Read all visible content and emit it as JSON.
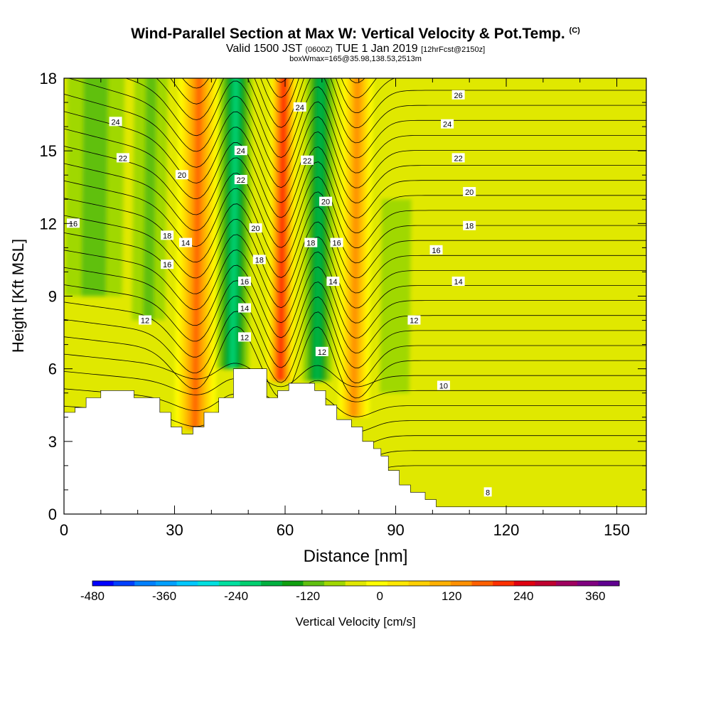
{
  "title": {
    "main": "Wind-Parallel Section at Max W: Vertical Velocity & Pot.Temp.",
    "copyright": "(C)",
    "valid_prefix": "Valid 1500 JST",
    "valid_utc": "(0600Z)",
    "valid_date": "TUE 1 Jan 2019",
    "forecast": "[12hrFcst@2150z]",
    "box_info": "boxWmax=165@35.98,138.53,2513m"
  },
  "chart_data": {
    "type": "heatmap",
    "xlabel": "Distance [nm]",
    "ylabel": "Height [Kft MSL]",
    "xlim": [
      0,
      158
    ],
    "ylim": [
      0,
      18
    ],
    "x_ticks": [
      0,
      30,
      60,
      90,
      120,
      150
    ],
    "y_ticks": [
      0,
      3,
      6,
      9,
      12,
      15,
      18
    ],
    "colorbar": {
      "label": "Vertical Velocity [cm/s]",
      "min": -480,
      "max": 400,
      "step": 40,
      "tick_labels": [
        -480,
        -360,
        -240,
        -120,
        0,
        120,
        240,
        360
      ],
      "colors": [
        "#0000ff",
        "#0040ff",
        "#0080ff",
        "#00a0ff",
        "#00c8ff",
        "#00e0e0",
        "#00e0a0",
        "#00d070",
        "#00b040",
        "#10a010",
        "#60c010",
        "#a0d800",
        "#e0e800",
        "#ffff00",
        "#ffe800",
        "#ffd000",
        "#ffb000",
        "#ff9000",
        "#ff6000",
        "#ff3000",
        "#e00010",
        "#c00030",
        "#a00060",
        "#800080",
        "#600090"
      ]
    },
    "terrain_kft": [
      [
        0,
        4.2
      ],
      [
        3,
        4.2
      ],
      [
        3,
        4.4
      ],
      [
        6,
        4.4
      ],
      [
        6,
        4.8
      ],
      [
        10,
        4.8
      ],
      [
        10,
        5.1
      ],
      [
        19,
        5.1
      ],
      [
        19,
        4.8
      ],
      [
        26,
        4.8
      ],
      [
        26,
        4.2
      ],
      [
        29,
        4.2
      ],
      [
        29,
        3.6
      ],
      [
        32,
        3.6
      ],
      [
        32,
        3.3
      ],
      [
        35,
        3.3
      ],
      [
        35,
        3.6
      ],
      [
        38,
        3.6
      ],
      [
        38,
        4.2
      ],
      [
        42,
        4.2
      ],
      [
        42,
        4.8
      ],
      [
        46,
        4.8
      ],
      [
        46,
        6.0
      ],
      [
        55,
        6.0
      ],
      [
        55,
        4.8
      ],
      [
        58,
        4.8
      ],
      [
        58,
        5.1
      ],
      [
        61,
        5.1
      ],
      [
        61,
        5.4
      ],
      [
        68,
        5.4
      ],
      [
        68,
        5.1
      ],
      [
        71,
        5.1
      ],
      [
        71,
        4.5
      ],
      [
        74,
        4.5
      ],
      [
        74,
        3.9
      ],
      [
        78,
        3.9
      ],
      [
        78,
        3.6
      ],
      [
        81,
        3.6
      ],
      [
        81,
        3.0
      ],
      [
        84,
        3.0
      ],
      [
        84,
        2.7
      ],
      [
        86,
        2.7
      ],
      [
        86,
        2.4
      ],
      [
        88,
        2.4
      ],
      [
        88,
        1.8
      ],
      [
        91,
        1.8
      ],
      [
        91,
        1.2
      ],
      [
        94,
        1.2
      ],
      [
        94,
        0.9
      ],
      [
        98,
        0.9
      ],
      [
        98,
        0.6
      ],
      [
        101,
        0.6
      ],
      [
        101,
        0.3
      ],
      [
        158,
        0.3
      ]
    ],
    "velocity_features": [
      {
        "x": 36,
        "width": 7,
        "w": 260,
        "ybot": 3.5,
        "ytop": 18
      },
      {
        "x": 46,
        "width": 5,
        "w": -190,
        "ybot": 6.0,
        "ytop": 18
      },
      {
        "x": 59,
        "width": 4.5,
        "w": 330,
        "ybot": 5.5,
        "ytop": 18
      },
      {
        "x": 69,
        "width": 4.5,
        "w": -170,
        "ybot": 5.5,
        "ytop": 18
      },
      {
        "x": 79,
        "width": 5.5,
        "w": 230,
        "ybot": 4.0,
        "ytop": 18
      },
      {
        "x": 8,
        "width": 10,
        "w": -70,
        "ybot": 9.0,
        "ytop": 18
      },
      {
        "x": 23,
        "width": 6,
        "w": -60,
        "ybot": 8.0,
        "ytop": 18
      },
      {
        "x": 90,
        "width": 6,
        "w": -40,
        "ybot": 5.0,
        "ytop": 12
      },
      {
        "x": 110,
        "width": 12,
        "w": 50,
        "ybot": 0.5,
        "ytop": 11
      },
      {
        "x": 140,
        "width": 12,
        "w": 45,
        "ybot": 2.0,
        "ytop": 15
      }
    ],
    "contour_labels": [
      {
        "x": 14,
        "y": 16.2,
        "text": "24"
      },
      {
        "x": 16,
        "y": 14.7,
        "text": "22"
      },
      {
        "x": 2.5,
        "y": 12.0,
        "text": "16"
      },
      {
        "x": 32,
        "y": 14.0,
        "text": "20"
      },
      {
        "x": 28,
        "y": 11.5,
        "text": "18"
      },
      {
        "x": 33,
        "y": 11.2,
        "text": "14"
      },
      {
        "x": 28,
        "y": 10.3,
        "text": "16"
      },
      {
        "x": 22,
        "y": 8.0,
        "text": "12"
      },
      {
        "x": 48,
        "y": 15.0,
        "text": "24"
      },
      {
        "x": 48,
        "y": 13.8,
        "text": "22"
      },
      {
        "x": 52,
        "y": 11.8,
        "text": "20"
      },
      {
        "x": 53,
        "y": 10.5,
        "text": "18"
      },
      {
        "x": 49,
        "y": 9.6,
        "text": "16"
      },
      {
        "x": 49,
        "y": 8.5,
        "text": "14"
      },
      {
        "x": 49,
        "y": 7.3,
        "text": "12"
      },
      {
        "x": 64,
        "y": 16.8,
        "text": "24"
      },
      {
        "x": 66,
        "y": 14.6,
        "text": "22"
      },
      {
        "x": 71,
        "y": 12.9,
        "text": "20"
      },
      {
        "x": 67,
        "y": 11.2,
        "text": "18"
      },
      {
        "x": 74,
        "y": 11.2,
        "text": "16"
      },
      {
        "x": 73,
        "y": 9.6,
        "text": "14"
      },
      {
        "x": 70,
        "y": 6.7,
        "text": "12"
      },
      {
        "x": 107,
        "y": 17.3,
        "text": "26"
      },
      {
        "x": 104,
        "y": 16.1,
        "text": "24"
      },
      {
        "x": 107,
        "y": 14.7,
        "text": "22"
      },
      {
        "x": 110,
        "y": 13.3,
        "text": "20"
      },
      {
        "x": 110,
        "y": 11.9,
        "text": "18"
      },
      {
        "x": 101,
        "y": 10.9,
        "text": "16"
      },
      {
        "x": 107,
        "y": 9.6,
        "text": "14"
      },
      {
        "x": 95,
        "y": 8.0,
        "text": "12"
      },
      {
        "x": 103,
        "y": 5.3,
        "text": "10"
      },
      {
        "x": 115,
        "y": 0.9,
        "text": "8"
      }
    ]
  }
}
